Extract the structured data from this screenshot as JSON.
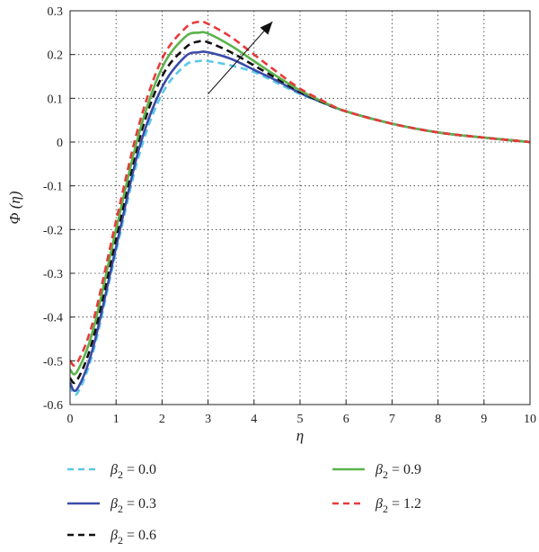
{
  "chart_data": {
    "type": "line",
    "xlabel": "η",
    "ylabel": "Φ (η)",
    "xlim": [
      0,
      10
    ],
    "ylim": [
      -0.6,
      0.3
    ],
    "xticks": [
      "0",
      "1",
      "2",
      "3",
      "4",
      "5",
      "6",
      "7",
      "8",
      "9",
      "10"
    ],
    "yticks": [
      "0.3",
      "0.2",
      "0.1",
      "0",
      "-0.1",
      "-0.2",
      "-0.3",
      "-0.4",
      "-0.5",
      "-0.6"
    ],
    "grid": true,
    "legend_position": "bottom",
    "annotation": "arrow indicating increasing β₂",
    "series": [
      {
        "name": "β2 = 0.0",
        "symbol": "β",
        "subscript": "2",
        "value_text": " = 0.0",
        "color": "#5bc8e8",
        "dash": "dashed",
        "x": [
          0,
          0.15,
          0.5,
          1,
          1.5,
          2,
          2.5,
          2.8,
          3,
          3.5,
          4,
          4.5,
          5,
          5.5,
          6,
          7,
          8,
          9,
          10
        ],
        "y": [
          -0.555,
          -0.575,
          -0.48,
          -0.25,
          -0.03,
          0.11,
          0.175,
          0.185,
          0.185,
          0.175,
          0.16,
          0.135,
          0.11,
          0.09,
          0.07,
          0.042,
          0.022,
          0.01,
          0.0
        ]
      },
      {
        "name": "β2 = 0.3",
        "symbol": "β",
        "subscript": "2",
        "value_text": " = 0.3",
        "color": "#3b4ba8",
        "dash": "solid",
        "x": [
          0,
          0.15,
          0.5,
          1,
          1.5,
          2,
          2.5,
          2.8,
          3,
          3.5,
          4,
          4.5,
          5,
          5.5,
          6,
          7,
          8,
          9,
          10
        ],
        "y": [
          -0.55,
          -0.565,
          -0.47,
          -0.24,
          -0.015,
          0.125,
          0.195,
          0.205,
          0.205,
          0.19,
          0.165,
          0.14,
          0.112,
          0.09,
          0.07,
          0.042,
          0.022,
          0.01,
          0.0
        ]
      },
      {
        "name": "β2 = 0.6",
        "symbol": "β",
        "subscript": "2",
        "value_text": " = 0.6",
        "color": "#111111",
        "dash": "dashed",
        "x": [
          0,
          0.15,
          0.5,
          1,
          1.5,
          2,
          2.5,
          2.8,
          3,
          3.5,
          4,
          4.5,
          5,
          5.5,
          6,
          7,
          8,
          9,
          10
        ],
        "y": [
          -0.54,
          -0.545,
          -0.45,
          -0.22,
          0.005,
          0.15,
          0.215,
          0.23,
          0.228,
          0.205,
          0.175,
          0.145,
          0.115,
          0.09,
          0.07,
          0.042,
          0.022,
          0.01,
          0.0
        ]
      },
      {
        "name": "β2 = 0.9",
        "symbol": "β",
        "subscript": "2",
        "value_text": " = 0.9",
        "color": "#5bb34a",
        "dash": "solid",
        "x": [
          0,
          0.15,
          0.5,
          1,
          1.5,
          2,
          2.5,
          2.8,
          3,
          3.5,
          4,
          4.5,
          5,
          5.5,
          6,
          7,
          8,
          9,
          10
        ],
        "y": [
          -0.52,
          -0.525,
          -0.43,
          -0.2,
          0.02,
          0.17,
          0.24,
          0.25,
          0.248,
          0.22,
          0.185,
          0.15,
          0.118,
          0.092,
          0.07,
          0.042,
          0.022,
          0.01,
          0.0
        ]
      },
      {
        "name": "β2 = 1.2",
        "symbol": "β",
        "subscript": "2",
        "value_text": " = 1.2",
        "color": "#e83a3a",
        "dash": "dashed",
        "x": [
          0,
          0.15,
          0.5,
          1,
          1.5,
          2,
          2.5,
          2.8,
          3,
          3.5,
          4,
          4.5,
          5,
          5.5,
          6,
          7,
          8,
          9,
          10
        ],
        "y": [
          -0.5,
          -0.505,
          -0.41,
          -0.18,
          0.04,
          0.19,
          0.26,
          0.275,
          0.27,
          0.24,
          0.2,
          0.16,
          0.122,
          0.094,
          0.07,
          0.042,
          0.022,
          0.01,
          0.0
        ]
      }
    ]
  }
}
